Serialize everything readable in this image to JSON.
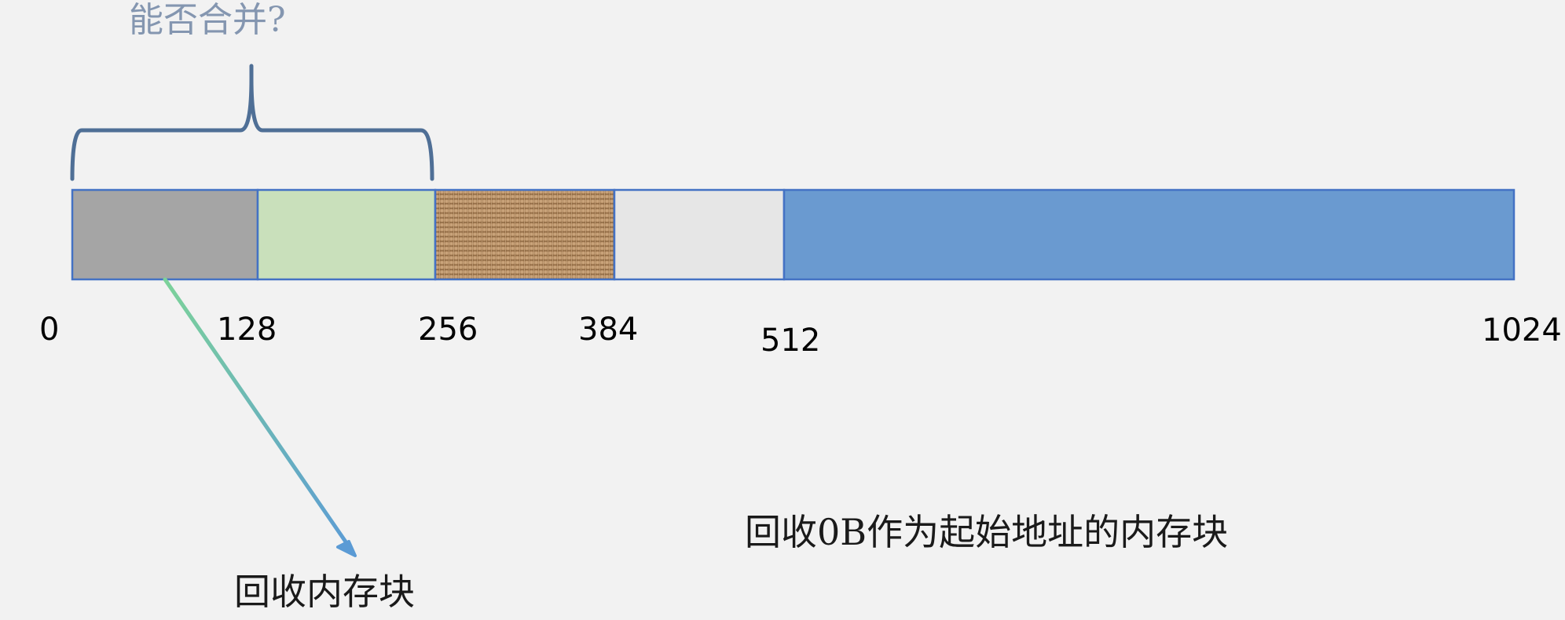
{
  "question_label": "能否合并?",
  "segments": [
    {
      "name": "recycled-block",
      "start": 0,
      "end": 128,
      "fill": "#a5a5a5",
      "pattern": "solid"
    },
    {
      "name": "free-block",
      "start": 128,
      "end": 256,
      "fill": "#c9e0bb",
      "pattern": "solid"
    },
    {
      "name": "occupied-block-burlap",
      "start": 256,
      "end": 384,
      "fill": "#b08a62",
      "pattern": "burlap"
    },
    {
      "name": "blank-block",
      "start": 384,
      "end": 512,
      "fill": "#e6e6e6",
      "pattern": "solid"
    },
    {
      "name": "large-block",
      "start": 512,
      "end": 1024,
      "fill": "#6a9ad0",
      "pattern": "solid"
    }
  ],
  "tick_labels": [
    "0",
    "128",
    "256",
    "384",
    "512",
    "1024"
  ],
  "arrow_label": "回收内存块",
  "caption": "回收0B作为起始地址的内存块",
  "colors": {
    "brace": "#4f6f96",
    "segment_border": "#4472c4",
    "arrow_start": "#7cd29a",
    "arrow_end": "#5b9bd5"
  }
}
